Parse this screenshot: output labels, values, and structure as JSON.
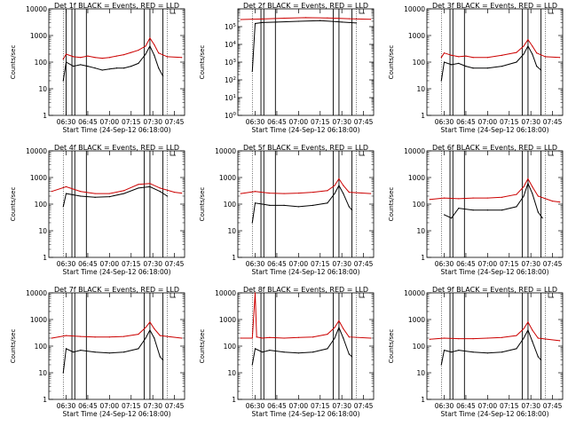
{
  "chart_data": [
    {
      "type": "line",
      "title": "Det 1f BLACK = Events, RED = LLD",
      "xlabel": "Start Time (24-Sep-12 06:18:00)",
      "ylabel": "Counts/sec",
      "y_scale": "log",
      "ylim": [
        1,
        10000
      ],
      "y_ticks": [
        "1",
        "10",
        "100",
        "1000",
        "10000"
      ],
      "x_ticks": [
        "06:30",
        "06:45",
        "07:00",
        "07:15",
        "07:30",
        "07:45"
      ],
      "vertical_markers": [
        "06:30",
        "06:34",
        "06:36",
        "06:44",
        "07:24",
        "07:28",
        "07:37"
      ],
      "series": [
        {
          "color": "#000000",
          "x": [
            "06:28",
            "06:30",
            "06:35",
            "06:40",
            "06:45",
            "06:50",
            "06:55",
            "07:00",
            "07:05",
            "07:10",
            "07:15",
            "07:20",
            "07:25",
            "07:28",
            "07:31",
            "07:34",
            "07:37"
          ],
          "values": [
            20,
            100,
            70,
            80,
            70,
            60,
            50,
            55,
            60,
            60,
            70,
            90,
            200,
            400,
            180,
            60,
            30
          ]
        },
        {
          "color": "#cc0000",
          "x": [
            "06:28",
            "06:30",
            "06:35",
            "06:40",
            "06:45",
            "06:50",
            "06:55",
            "07:00",
            "07:05",
            "07:10",
            "07:15",
            "07:20",
            "07:25",
            "07:28",
            "07:31",
            "07:34",
            "07:40",
            "07:50"
          ],
          "values": [
            130,
            200,
            160,
            150,
            170,
            150,
            140,
            150,
            170,
            190,
            230,
            280,
            400,
            800,
            450,
            220,
            160,
            150
          ]
        }
      ]
    },
    {
      "type": "line",
      "title": "Det 2f BLACK = Events, RED = LLD",
      "xlabel": "",
      "ylabel": "Counts/sec",
      "y_scale": "log",
      "ylim": [
        1,
        1000000
      ],
      "y_ticks": [
        "10^0",
        "10^1",
        "10^2",
        "10^3",
        "10^4",
        "10^5"
      ],
      "x_ticks": [],
      "vertical_markers": [
        "06:34",
        "06:36",
        "06:44",
        "07:24",
        "07:28",
        "07:37"
      ],
      "series": [
        {
          "color": "#000000",
          "x": [
            "06:28",
            "06:30",
            "06:35",
            "06:45",
            "07:00",
            "07:15",
            "07:30",
            "07:40"
          ],
          "values": [
            300,
            150000,
            170000,
            180000,
            200000,
            220000,
            180000,
            160000
          ]
        },
        {
          "color": "#cc0000",
          "x": [
            "06:20",
            "06:35",
            "06:50",
            "07:05",
            "07:20",
            "07:35",
            "07:50"
          ],
          "values": [
            250000,
            270000,
            300000,
            320000,
            310000,
            280000,
            260000
          ]
        }
      ]
    },
    {
      "type": "line",
      "title": "Det 3f BLACK = Events, RED = LLD",
      "xlabel": "",
      "ylabel": "Counts/sec",
      "y_scale": "log",
      "ylim": [
        1,
        10000
      ],
      "y_ticks": [
        "1",
        "10",
        "100",
        "1000",
        "10000"
      ],
      "x_ticks": [],
      "vertical_markers": [
        "06:34",
        "06:36",
        "06:44",
        "07:24",
        "07:28",
        "07:37"
      ],
      "series": [
        {
          "color": "#000000",
          "x": [
            "06:28",
            "06:30",
            "06:35",
            "06:40",
            "06:45",
            "06:50",
            "07:00",
            "07:10",
            "07:20",
            "07:25",
            "07:28",
            "07:31",
            "07:34",
            "07:37"
          ],
          "values": [
            20,
            100,
            80,
            90,
            70,
            60,
            60,
            70,
            100,
            200,
            400,
            200,
            70,
            50
          ]
        },
        {
          "color": "#cc0000",
          "x": [
            "06:28",
            "06:30",
            "06:35",
            "06:40",
            "06:45",
            "06:50",
            "07:00",
            "07:10",
            "07:20",
            "07:25",
            "07:28",
            "07:31",
            "07:34",
            "07:40",
            "07:50"
          ],
          "values": [
            150,
            220,
            180,
            160,
            170,
            150,
            150,
            180,
            230,
            400,
            700,
            400,
            220,
            160,
            150
          ]
        }
      ]
    },
    {
      "type": "line",
      "title": "Det 4f BLACK = Events, RED = LLD",
      "xlabel": "",
      "ylabel": "Counts/sec",
      "y_scale": "log",
      "ylim": [
        1,
        10000
      ],
      "y_ticks": [
        "1",
        "10",
        "100",
        "1000",
        "10000"
      ],
      "x_ticks": [],
      "vertical_markers": [
        "06:34",
        "06:36",
        "06:44",
        "07:24",
        "07:28",
        "07:37"
      ],
      "series": [
        {
          "color": "#000000",
          "x": [
            "06:28",
            "06:30",
            "06:40",
            "06:50",
            "07:00",
            "07:10",
            "07:20",
            "07:28",
            "07:35",
            "07:40"
          ],
          "values": [
            80,
            250,
            200,
            180,
            190,
            250,
            400,
            450,
            300,
            200
          ]
        },
        {
          "color": "#cc0000",
          "x": [
            "06:20",
            "06:30",
            "06:40",
            "06:50",
            "07:00",
            "07:10",
            "07:20",
            "07:28",
            "07:35",
            "07:45",
            "07:50"
          ],
          "values": [
            300,
            450,
            300,
            250,
            250,
            320,
            550,
            600,
            400,
            280,
            260
          ]
        }
      ]
    },
    {
      "type": "line",
      "title": "Det 5f BLACK = Events, RED = LLD",
      "xlabel": "",
      "ylabel": "Counts/sec",
      "y_scale": "log",
      "ylim": [
        1,
        10000
      ],
      "y_ticks": [
        "1",
        "10",
        "100",
        "1000",
        "10000"
      ],
      "x_ticks": [],
      "vertical_markers": [
        "06:34",
        "06:36",
        "06:44",
        "07:24",
        "07:28",
        "07:37"
      ],
      "series": [
        {
          "color": "#000000",
          "x": [
            "06:28",
            "06:30",
            "06:35",
            "06:40",
            "06:50",
            "07:00",
            "07:10",
            "07:20",
            "07:25",
            "07:28",
            "07:31",
            "07:35",
            "07:37"
          ],
          "values": [
            20,
            110,
            100,
            90,
            90,
            80,
            90,
            110,
            250,
            500,
            250,
            80,
            60
          ]
        },
        {
          "color": "#cc0000",
          "x": [
            "06:20",
            "06:30",
            "06:40",
            "06:50",
            "07:00",
            "07:10",
            "07:20",
            "07:25",
            "07:28",
            "07:31",
            "07:35",
            "07:50"
          ],
          "values": [
            250,
            300,
            260,
            250,
            260,
            280,
            320,
            500,
            900,
            500,
            280,
            250
          ]
        }
      ]
    },
    {
      "type": "line",
      "title": "Det 6f BLACK = Events, RED = LLD",
      "xlabel": "",
      "ylabel": "Counts/sec",
      "y_scale": "log",
      "ylim": [
        1,
        10000
      ],
      "y_ticks": [
        "1",
        "10",
        "100",
        "1000",
        "10000"
      ],
      "x_ticks": [],
      "vertical_markers": [
        "06:34",
        "06:36",
        "06:44",
        "07:24",
        "07:28",
        "07:37"
      ],
      "series": [
        {
          "color": "#000000",
          "x": [
            "06:30",
            "06:35",
            "06:40",
            "06:50",
            "07:00",
            "07:10",
            "07:20",
            "07:25",
            "07:28",
            "07:31",
            "07:35",
            "07:38"
          ],
          "values": [
            40,
            30,
            70,
            60,
            60,
            60,
            80,
            200,
            600,
            250,
            50,
            30
          ]
        },
        {
          "color": "#cc0000",
          "x": [
            "06:20",
            "06:30",
            "06:40",
            "06:50",
            "07:00",
            "07:10",
            "07:20",
            "07:25",
            "07:28",
            "07:31",
            "07:35",
            "07:45",
            "07:50"
          ],
          "values": [
            150,
            170,
            160,
            170,
            170,
            180,
            230,
            450,
            900,
            450,
            200,
            130,
            120
          ]
        }
      ]
    },
    {
      "type": "line",
      "title": "Det 7f BLACK = Events, RED = LLD",
      "xlabel": "",
      "ylabel": "Counts/sec",
      "y_scale": "log",
      "ylim": [
        1,
        10000
      ],
      "y_ticks": [
        "1",
        "10",
        "100",
        "1000",
        "10000"
      ],
      "x_ticks": [],
      "vertical_markers": [
        "06:34",
        "06:36",
        "06:44",
        "07:24",
        "07:28",
        "07:37"
      ],
      "series": [
        {
          "color": "#000000",
          "x": [
            "06:28",
            "06:30",
            "06:35",
            "06:40",
            "06:50",
            "07:00",
            "07:10",
            "07:20",
            "07:25",
            "07:28",
            "07:31",
            "07:35",
            "07:37"
          ],
          "values": [
            10,
            80,
            60,
            70,
            60,
            55,
            60,
            80,
            200,
            400,
            200,
            40,
            30
          ]
        },
        {
          "color": "#cc0000",
          "x": [
            "06:20",
            "06:30",
            "06:40",
            "06:50",
            "07:00",
            "07:10",
            "07:20",
            "07:25",
            "07:28",
            "07:31",
            "07:35",
            "07:50"
          ],
          "values": [
            200,
            250,
            230,
            220,
            220,
            230,
            280,
            500,
            800,
            450,
            250,
            200
          ]
        }
      ]
    },
    {
      "type": "line",
      "title": "Det 8f BLACK = Events, RED = LLD",
      "xlabel": "",
      "ylabel": "Counts/sec",
      "y_scale": "log",
      "ylim": [
        1,
        10000
      ],
      "y_ticks": [
        "1",
        "10",
        "100",
        "1000",
        "10000"
      ],
      "x_ticks": [],
      "vertical_markers": [
        "06:34",
        "06:36",
        "06:44",
        "07:24",
        "07:28",
        "07:37"
      ],
      "series": [
        {
          "color": "#000000",
          "x": [
            "06:28",
            "06:30",
            "06:35",
            "06:40",
            "06:50",
            "07:00",
            "07:10",
            "07:20",
            "07:25",
            "07:28",
            "07:31",
            "07:35",
            "07:37"
          ],
          "values": [
            20,
            80,
            60,
            70,
            60,
            55,
            60,
            80,
            200,
            500,
            200,
            50,
            40
          ]
        },
        {
          "color": "#cc0000",
          "x": [
            "06:20",
            "06:28",
            "06:30",
            "06:31",
            "06:35",
            "06:40",
            "06:50",
            "07:00",
            "07:10",
            "07:20",
            "07:25",
            "07:28",
            "07:31",
            "07:35",
            "07:50"
          ],
          "values": [
            200,
            200,
            10000,
            220,
            200,
            210,
            200,
            210,
            220,
            280,
            500,
            900,
            450,
            220,
            200
          ]
        }
      ]
    },
    {
      "type": "line",
      "title": "Det 9f BLACK = Events, RED = LLD",
      "xlabel": "",
      "ylabel": "Counts/sec",
      "y_scale": "log",
      "ylim": [
        1,
        10000
      ],
      "y_ticks": [
        "1",
        "10",
        "100",
        "1000",
        "10000"
      ],
      "x_ticks": [],
      "vertical_markers": [
        "06:34",
        "06:36",
        "06:44",
        "07:24",
        "07:28",
        "07:37"
      ],
      "series": [
        {
          "color": "#000000",
          "x": [
            "06:28",
            "06:30",
            "06:35",
            "06:40",
            "06:50",
            "07:00",
            "07:10",
            "07:20",
            "07:25",
            "07:28",
            "07:31",
            "07:35",
            "07:37"
          ],
          "values": [
            20,
            70,
            60,
            70,
            60,
            55,
            60,
            80,
            200,
            400,
            150,
            40,
            30
          ]
        },
        {
          "color": "#cc0000",
          "x": [
            "06:20",
            "06:30",
            "06:40",
            "06:50",
            "07:00",
            "07:10",
            "07:20",
            "07:25",
            "07:28",
            "07:31",
            "07:35",
            "07:50"
          ],
          "values": [
            180,
            200,
            190,
            190,
            200,
            210,
            250,
            450,
            800,
            400,
            200,
            160
          ]
        }
      ]
    }
  ]
}
